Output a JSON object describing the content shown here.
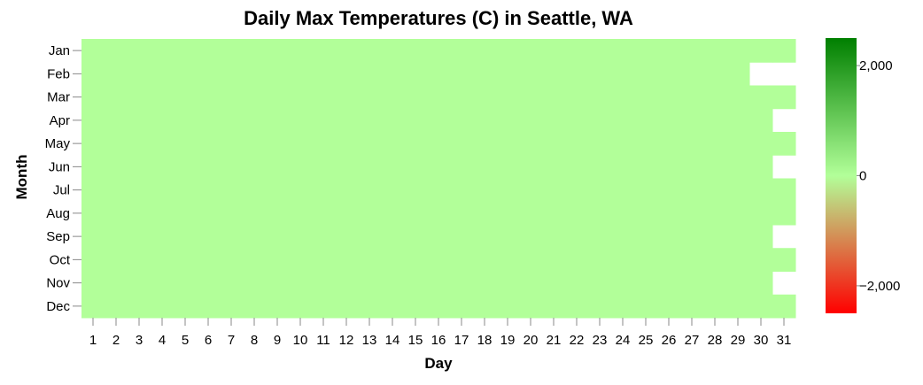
{
  "chart_data": {
    "type": "heatmap",
    "title": "Daily Max Temperatures (C) in Seattle, WA",
    "xlabel": "Day",
    "ylabel": "Month",
    "x": [
      "1",
      "2",
      "3",
      "4",
      "5",
      "6",
      "7",
      "8",
      "9",
      "10",
      "11",
      "12",
      "13",
      "14",
      "15",
      "16",
      "17",
      "18",
      "19",
      "20",
      "21",
      "22",
      "23",
      "24",
      "25",
      "26",
      "27",
      "28",
      "29",
      "30",
      "31"
    ],
    "y": [
      "Jan",
      "Feb",
      "Mar",
      "Apr",
      "May",
      "Jun",
      "Jul",
      "Aug",
      "Sep",
      "Oct",
      "Nov",
      "Dec"
    ],
    "days_in_month": [
      31,
      29,
      31,
      30,
      31,
      30,
      31,
      31,
      30,
      31,
      30,
      31
    ],
    "cell_value": 0,
    "color_scale": {
      "domain": [
        -2500,
        0,
        2500
      ],
      "colors": [
        "#ff0000",
        "#b2ff99",
        "#007f00"
      ],
      "ticks": [
        -2000,
        0,
        2000
      ],
      "tick_labels": [
        "−2,000",
        "0",
        "2,000"
      ]
    },
    "grid": false,
    "legend_position": "right"
  }
}
